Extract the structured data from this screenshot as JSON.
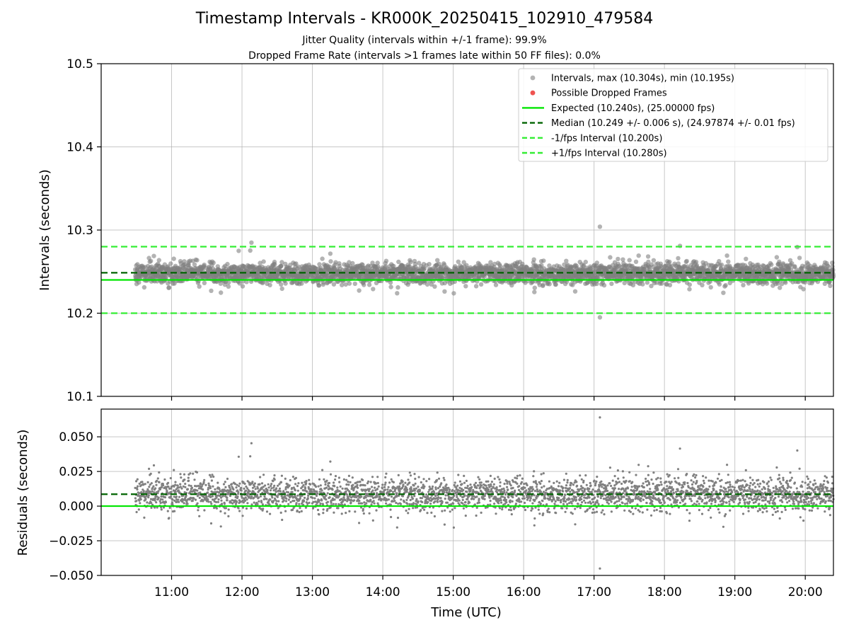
{
  "header": {
    "title": "Timestamp Intervals - KR000K_20250415_102910_479584",
    "subtitle_jitter": "Jitter Quality (intervals within +/-1 frame): 99.9%",
    "subtitle_dropped": "Dropped Frame Rate (intervals >1 frames late within 50 FF files): 0.0%"
  },
  "colors": {
    "points": "#808080",
    "dropped": "#ef5350",
    "expected": "#00e600",
    "median": "#006400",
    "band": "#33ee33",
    "grid": "#b0b0b0"
  },
  "chart_data": [
    {
      "type": "scatter",
      "panel": "intervals",
      "xlabel": "",
      "ylabel": "Intervals (seconds)",
      "xlim": [
        "10:00",
        "20:24"
      ],
      "ylim": [
        10.1,
        10.5
      ],
      "y_ticks": [
        "10.1",
        "10.2",
        "10.3",
        "10.4",
        "10.5"
      ],
      "grid": true,
      "legend_position": "top-right",
      "scatter_summary": {
        "x_range": [
          "10:29",
          "20:24"
        ],
        "y_center": 10.248,
        "y_typical_spread": 0.006,
        "max": {
          "x": "17:05",
          "y": 10.304
        },
        "min": {
          "x": "17:05",
          "y": 10.195
        }
      },
      "series": [
        {
          "name": "Intervals, max (10.304s), min (10.195s)",
          "kind": "scatter"
        },
        {
          "name": "Possible Dropped Frames",
          "kind": "scatter",
          "values": []
        },
        {
          "name": "Expected (10.240s), (25.00000 fps)",
          "kind": "hline",
          "y": 10.24
        },
        {
          "name": "Median (10.249 +/- 0.006 s), (24.97874 +/- 0.01 fps)",
          "kind": "hline",
          "y": 10.2486
        },
        {
          "name": "-1/fps Interval (10.200s)",
          "kind": "hline",
          "y": 10.2
        },
        {
          "name": "+1/fps Interval (10.280s)",
          "kind": "hline",
          "y": 10.28
        }
      ]
    },
    {
      "type": "scatter",
      "panel": "residuals",
      "xlabel": "Time (UTC)",
      "ylabel": "Residuals (seconds)",
      "xlim": [
        "10:00",
        "20:24"
      ],
      "x_ticks": [
        "11:00",
        "12:00",
        "13:00",
        "14:00",
        "15:00",
        "16:00",
        "17:00",
        "18:00",
        "19:00",
        "20:00"
      ],
      "ylim": [
        -0.05,
        0.07
      ],
      "y_ticks": [
        "−0.050",
        "−0.025",
        "0.000",
        "0.025",
        "0.050"
      ],
      "grid": true,
      "scatter_summary": {
        "y_center": 0.0086,
        "y_typical_spread": 0.006,
        "max": {
          "x": "17:05",
          "y": 0.064
        },
        "min": {
          "x": "17:05",
          "y": -0.045
        }
      },
      "series": [
        {
          "kind": "hline",
          "y": 0.0
        },
        {
          "kind": "hline",
          "y": 0.0086
        }
      ]
    }
  ]
}
